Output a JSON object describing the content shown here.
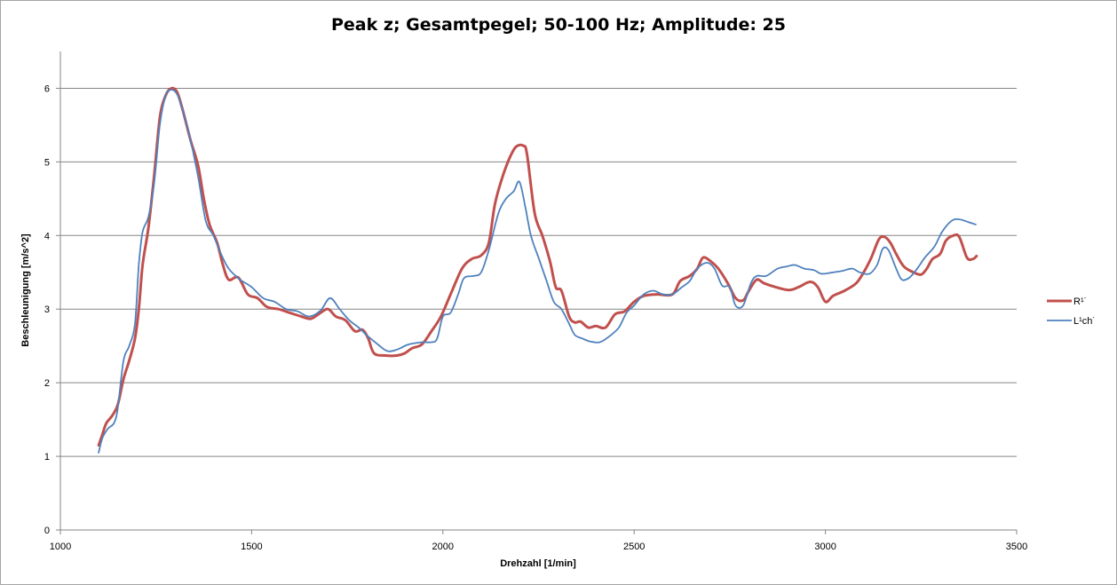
{
  "chart_data": {
    "type": "line",
    "title": "Peak z; Gesamtpegel; 50-100 Hz; Amplitude: 25",
    "xlabel": "Drehzahl [1/min]",
    "ylabel": "Beschleunigung  [m/s^2]",
    "xlim": [
      1000,
      3500
    ],
    "ylim": [
      0,
      6.5
    ],
    "x_ticks": [
      1000,
      1500,
      2000,
      2500,
      3000,
      3500
    ],
    "y_ticks": [
      0,
      1,
      2,
      3,
      4,
      5,
      6
    ],
    "grid": "horizontal",
    "legend_position": "right",
    "series": [
      {
        "name": "R¹˙",
        "color": "#c0504d",
        "points": [
          [
            1100,
            1.15
          ],
          [
            1110,
            1.3
          ],
          [
            1120,
            1.45
          ],
          [
            1135,
            1.55
          ],
          [
            1150,
            1.7
          ],
          [
            1165,
            2.05
          ],
          [
            1180,
            2.3
          ],
          [
            1195,
            2.6
          ],
          [
            1205,
            3.0
          ],
          [
            1215,
            3.6
          ],
          [
            1230,
            4.1
          ],
          [
            1245,
            4.8
          ],
          [
            1260,
            5.6
          ],
          [
            1275,
            5.9
          ],
          [
            1290,
            6.0
          ],
          [
            1305,
            5.95
          ],
          [
            1320,
            5.7
          ],
          [
            1340,
            5.3
          ],
          [
            1360,
            4.95
          ],
          [
            1375,
            4.5
          ],
          [
            1390,
            4.15
          ],
          [
            1410,
            3.9
          ],
          [
            1425,
            3.6
          ],
          [
            1440,
            3.4
          ],
          [
            1465,
            3.43
          ],
          [
            1490,
            3.2
          ],
          [
            1515,
            3.15
          ],
          [
            1540,
            3.03
          ],
          [
            1570,
            3.0
          ],
          [
            1600,
            2.95
          ],
          [
            1630,
            2.9
          ],
          [
            1655,
            2.87
          ],
          [
            1680,
            2.95
          ],
          [
            1700,
            3.0
          ],
          [
            1720,
            2.9
          ],
          [
            1745,
            2.85
          ],
          [
            1770,
            2.7
          ],
          [
            1790,
            2.72
          ],
          [
            1805,
            2.6
          ],
          [
            1820,
            2.4
          ],
          [
            1850,
            2.37
          ],
          [
            1880,
            2.37
          ],
          [
            1900,
            2.4
          ],
          [
            1920,
            2.47
          ],
          [
            1945,
            2.52
          ],
          [
            1970,
            2.7
          ],
          [
            1995,
            2.9
          ],
          [
            2020,
            3.2
          ],
          [
            2050,
            3.55
          ],
          [
            2075,
            3.68
          ],
          [
            2100,
            3.73
          ],
          [
            2120,
            3.9
          ],
          [
            2135,
            4.4
          ],
          [
            2150,
            4.7
          ],
          [
            2170,
            5.0
          ],
          [
            2190,
            5.2
          ],
          [
            2210,
            5.22
          ],
          [
            2220,
            5.1
          ],
          [
            2240,
            4.3
          ],
          [
            2260,
            4.0
          ],
          [
            2280,
            3.65
          ],
          [
            2295,
            3.3
          ],
          [
            2310,
            3.25
          ],
          [
            2330,
            2.9
          ],
          [
            2345,
            2.82
          ],
          [
            2360,
            2.83
          ],
          [
            2380,
            2.75
          ],
          [
            2400,
            2.77
          ],
          [
            2425,
            2.75
          ],
          [
            2450,
            2.93
          ],
          [
            2475,
            2.97
          ],
          [
            2500,
            3.1
          ],
          [
            2525,
            3.18
          ],
          [
            2560,
            3.2
          ],
          [
            2600,
            3.2
          ],
          [
            2620,
            3.38
          ],
          [
            2645,
            3.45
          ],
          [
            2665,
            3.55
          ],
          [
            2680,
            3.7
          ],
          [
            2700,
            3.65
          ],
          [
            2720,
            3.55
          ],
          [
            2745,
            3.35
          ],
          [
            2765,
            3.15
          ],
          [
            2785,
            3.12
          ],
          [
            2800,
            3.25
          ],
          [
            2820,
            3.4
          ],
          [
            2840,
            3.35
          ],
          [
            2870,
            3.3
          ],
          [
            2905,
            3.26
          ],
          [
            2930,
            3.3
          ],
          [
            2960,
            3.37
          ],
          [
            2980,
            3.3
          ],
          [
            3000,
            3.1
          ],
          [
            3020,
            3.18
          ],
          [
            3050,
            3.25
          ],
          [
            3080,
            3.35
          ],
          [
            3100,
            3.5
          ],
          [
            3120,
            3.7
          ],
          [
            3140,
            3.95
          ],
          [
            3155,
            3.98
          ],
          [
            3170,
            3.9
          ],
          [
            3185,
            3.75
          ],
          [
            3205,
            3.58
          ],
          [
            3230,
            3.5
          ],
          [
            3250,
            3.47
          ],
          [
            3265,
            3.55
          ],
          [
            3280,
            3.68
          ],
          [
            3300,
            3.75
          ],
          [
            3315,
            3.93
          ],
          [
            3335,
            4.0
          ],
          [
            3350,
            3.98
          ],
          [
            3370,
            3.7
          ],
          [
            3385,
            3.68
          ],
          [
            3395,
            3.72
          ]
        ]
      },
      {
        "name": "L¹ch˙",
        "color": "#4f81bd",
        "points": [
          [
            1100,
            1.05
          ],
          [
            1110,
            1.25
          ],
          [
            1125,
            1.38
          ],
          [
            1140,
            1.45
          ],
          [
            1150,
            1.65
          ],
          [
            1165,
            2.3
          ],
          [
            1180,
            2.5
          ],
          [
            1195,
            2.8
          ],
          [
            1205,
            3.6
          ],
          [
            1215,
            4.05
          ],
          [
            1230,
            4.25
          ],
          [
            1245,
            4.7
          ],
          [
            1260,
            5.5
          ],
          [
            1275,
            5.9
          ],
          [
            1290,
            5.98
          ],
          [
            1305,
            5.92
          ],
          [
            1320,
            5.7
          ],
          [
            1340,
            5.3
          ],
          [
            1360,
            4.8
          ],
          [
            1380,
            4.2
          ],
          [
            1400,
            4.0
          ],
          [
            1420,
            3.75
          ],
          [
            1440,
            3.55
          ],
          [
            1470,
            3.4
          ],
          [
            1500,
            3.3
          ],
          [
            1530,
            3.15
          ],
          [
            1560,
            3.1
          ],
          [
            1590,
            3.0
          ],
          [
            1620,
            2.97
          ],
          [
            1650,
            2.9
          ],
          [
            1680,
            2.98
          ],
          [
            1705,
            3.15
          ],
          [
            1730,
            3.0
          ],
          [
            1755,
            2.85
          ],
          [
            1780,
            2.75
          ],
          [
            1800,
            2.65
          ],
          [
            1830,
            2.52
          ],
          [
            1855,
            2.43
          ],
          [
            1880,
            2.45
          ],
          [
            1910,
            2.52
          ],
          [
            1945,
            2.55
          ],
          [
            1970,
            2.55
          ],
          [
            1985,
            2.6
          ],
          [
            2000,
            2.9
          ],
          [
            2020,
            2.95
          ],
          [
            2040,
            3.2
          ],
          [
            2055,
            3.42
          ],
          [
            2080,
            3.45
          ],
          [
            2100,
            3.5
          ],
          [
            2120,
            3.8
          ],
          [
            2145,
            4.3
          ],
          [
            2165,
            4.5
          ],
          [
            2185,
            4.6
          ],
          [
            2200,
            4.73
          ],
          [
            2215,
            4.4
          ],
          [
            2230,
            4.0
          ],
          [
            2250,
            3.7
          ],
          [
            2270,
            3.4
          ],
          [
            2290,
            3.1
          ],
          [
            2310,
            3.0
          ],
          [
            2330,
            2.8
          ],
          [
            2345,
            2.65
          ],
          [
            2365,
            2.6
          ],
          [
            2385,
            2.56
          ],
          [
            2410,
            2.55
          ],
          [
            2435,
            2.63
          ],
          [
            2460,
            2.75
          ],
          [
            2480,
            2.95
          ],
          [
            2500,
            3.05
          ],
          [
            2525,
            3.2
          ],
          [
            2550,
            3.25
          ],
          [
            2575,
            3.2
          ],
          [
            2600,
            3.2
          ],
          [
            2625,
            3.3
          ],
          [
            2645,
            3.38
          ],
          [
            2665,
            3.55
          ],
          [
            2690,
            3.63
          ],
          [
            2710,
            3.55
          ],
          [
            2730,
            3.32
          ],
          [
            2750,
            3.3
          ],
          [
            2765,
            3.05
          ],
          [
            2785,
            3.05
          ],
          [
            2805,
            3.35
          ],
          [
            2820,
            3.45
          ],
          [
            2845,
            3.45
          ],
          [
            2875,
            3.55
          ],
          [
            2900,
            3.58
          ],
          [
            2920,
            3.6
          ],
          [
            2945,
            3.55
          ],
          [
            2970,
            3.53
          ],
          [
            2990,
            3.48
          ],
          [
            3020,
            3.5
          ],
          [
            3045,
            3.52
          ],
          [
            3070,
            3.55
          ],
          [
            3090,
            3.5
          ],
          [
            3115,
            3.48
          ],
          [
            3135,
            3.6
          ],
          [
            3150,
            3.82
          ],
          [
            3165,
            3.8
          ],
          [
            3185,
            3.55
          ],
          [
            3200,
            3.4
          ],
          [
            3220,
            3.43
          ],
          [
            3240,
            3.55
          ],
          [
            3260,
            3.7
          ],
          [
            3285,
            3.85
          ],
          [
            3305,
            4.05
          ],
          [
            3330,
            4.2
          ],
          [
            3350,
            4.22
          ],
          [
            3375,
            4.18
          ],
          [
            3393,
            4.15
          ]
        ]
      }
    ]
  }
}
